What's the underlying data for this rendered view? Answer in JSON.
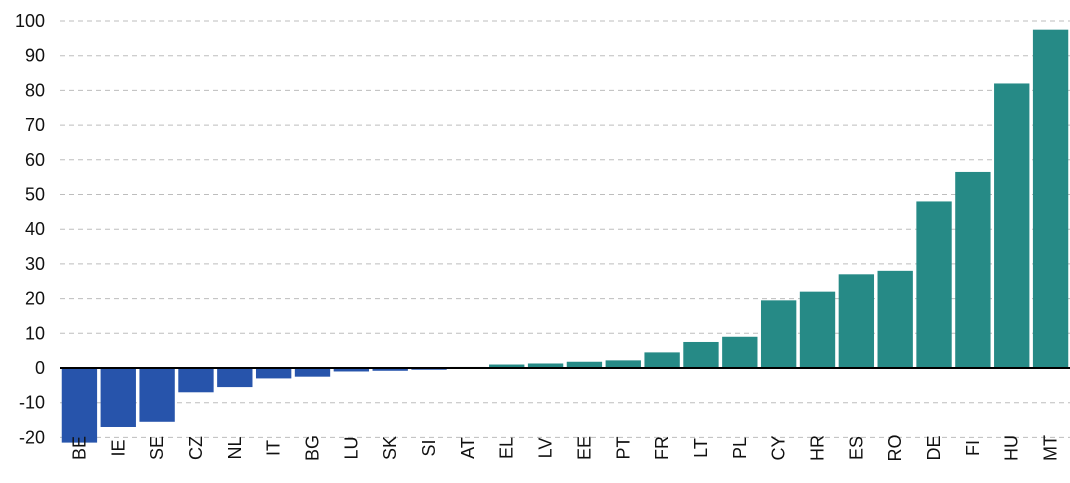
{
  "chart_data": {
    "type": "bar",
    "categories": [
      "BE",
      "IE",
      "SE",
      "CZ",
      "NL",
      "IT",
      "BG",
      "LU",
      "SK",
      "SI",
      "AT",
      "EL",
      "LV",
      "EE",
      "PT",
      "FR",
      "LT",
      "PL",
      "CY",
      "HR",
      "ES",
      "RO",
      "DE",
      "FI",
      "HU",
      "MT"
    ],
    "values": [
      -21.5,
      -17,
      -15.5,
      -7,
      -5.5,
      -3,
      -2.5,
      -1,
      -0.8,
      -0.5,
      0.3,
      1,
      1.3,
      1.8,
      2.2,
      4.5,
      7.5,
      9,
      19.5,
      22,
      27,
      28,
      48,
      56.5,
      82,
      97.5
    ],
    "colors": {
      "negative": "#2754ab",
      "positive": "#268a86"
    },
    "ylim": [
      -22,
      100
    ],
    "yticks": [
      -20,
      -10,
      0,
      10,
      20,
      30,
      40,
      50,
      60,
      70,
      80,
      90,
      100
    ],
    "grid": true,
    "title": "",
    "xlabel": "",
    "ylabel": ""
  }
}
